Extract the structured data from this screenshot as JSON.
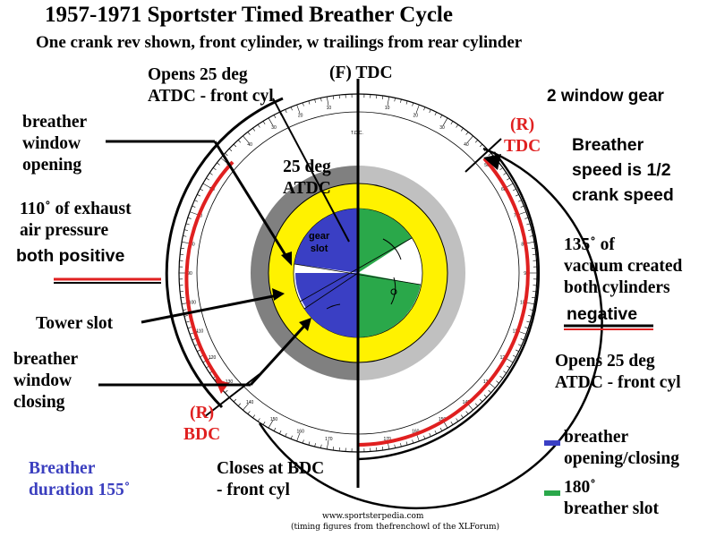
{
  "title": "1957-1971 Sportster Timed Breather Cycle",
  "subtitle": "One crank rev shown, front cylinder, w trailings from rear cylinder",
  "labels": {
    "opens_top": "Opens 25 deg\nATDC - front cyl",
    "f_tdc": "(F) TDC",
    "two_window": "2 window gear",
    "r_tdc": "(R)\nTDC",
    "breather_speed": "Breather\nspeed is 1/2\ncrank speed",
    "breather_window_opening": "breather\nwindow\nopening",
    "deg25_atdc": "25 deg\nATDC",
    "exhaust": "110˚ of exhaust\nair pressure",
    "both_positive": "both positive",
    "gear_slot": "gear\nslot",
    "vacuum": "135˚ of\nvacuum created\nboth cylinders",
    "negative": "negative",
    "tower_slot": "Tower slot",
    "breather_window_closing": "breather\nwindow\nclosing",
    "opens_right": "Opens 25 deg\nATDC - front cyl",
    "r_bdc": "(R)\nBDC",
    "breather_duration": "Breather\nduration 155˚",
    "closes_bdc": "Closes at BDC\n- front cyl",
    "tdc_scale": "T.D.C.",
    "tick_numbers": [
      "170",
      "160",
      "150",
      "140",
      "130",
      "120",
      "110",
      "100",
      "90",
      "80",
      "70",
      "60",
      "50",
      "40",
      "30",
      "20",
      "10",
      "10",
      "20",
      "30",
      "40",
      "50",
      "60",
      "70",
      "80",
      "90",
      "100",
      "110",
      "120",
      "130",
      "140",
      "150",
      "160",
      "170"
    ]
  },
  "legend": [
    {
      "text": "breather\nopening/closing",
      "color": "#3a3fc4"
    },
    {
      "text": "180˚\nbreather slot",
      "color": "#2aa84a"
    }
  ],
  "footer": {
    "website": "www.sportsterpedia.com",
    "credit": "(timing figures from thefrenchowl of the XLForum)"
  },
  "colors": {
    "blue": "#3a3fc4",
    "green": "#2aa84a",
    "yellow": "#fff200",
    "red": "#e02020",
    "dark_gray": "#808080",
    "light_gray": "#c0c0c0"
  }
}
